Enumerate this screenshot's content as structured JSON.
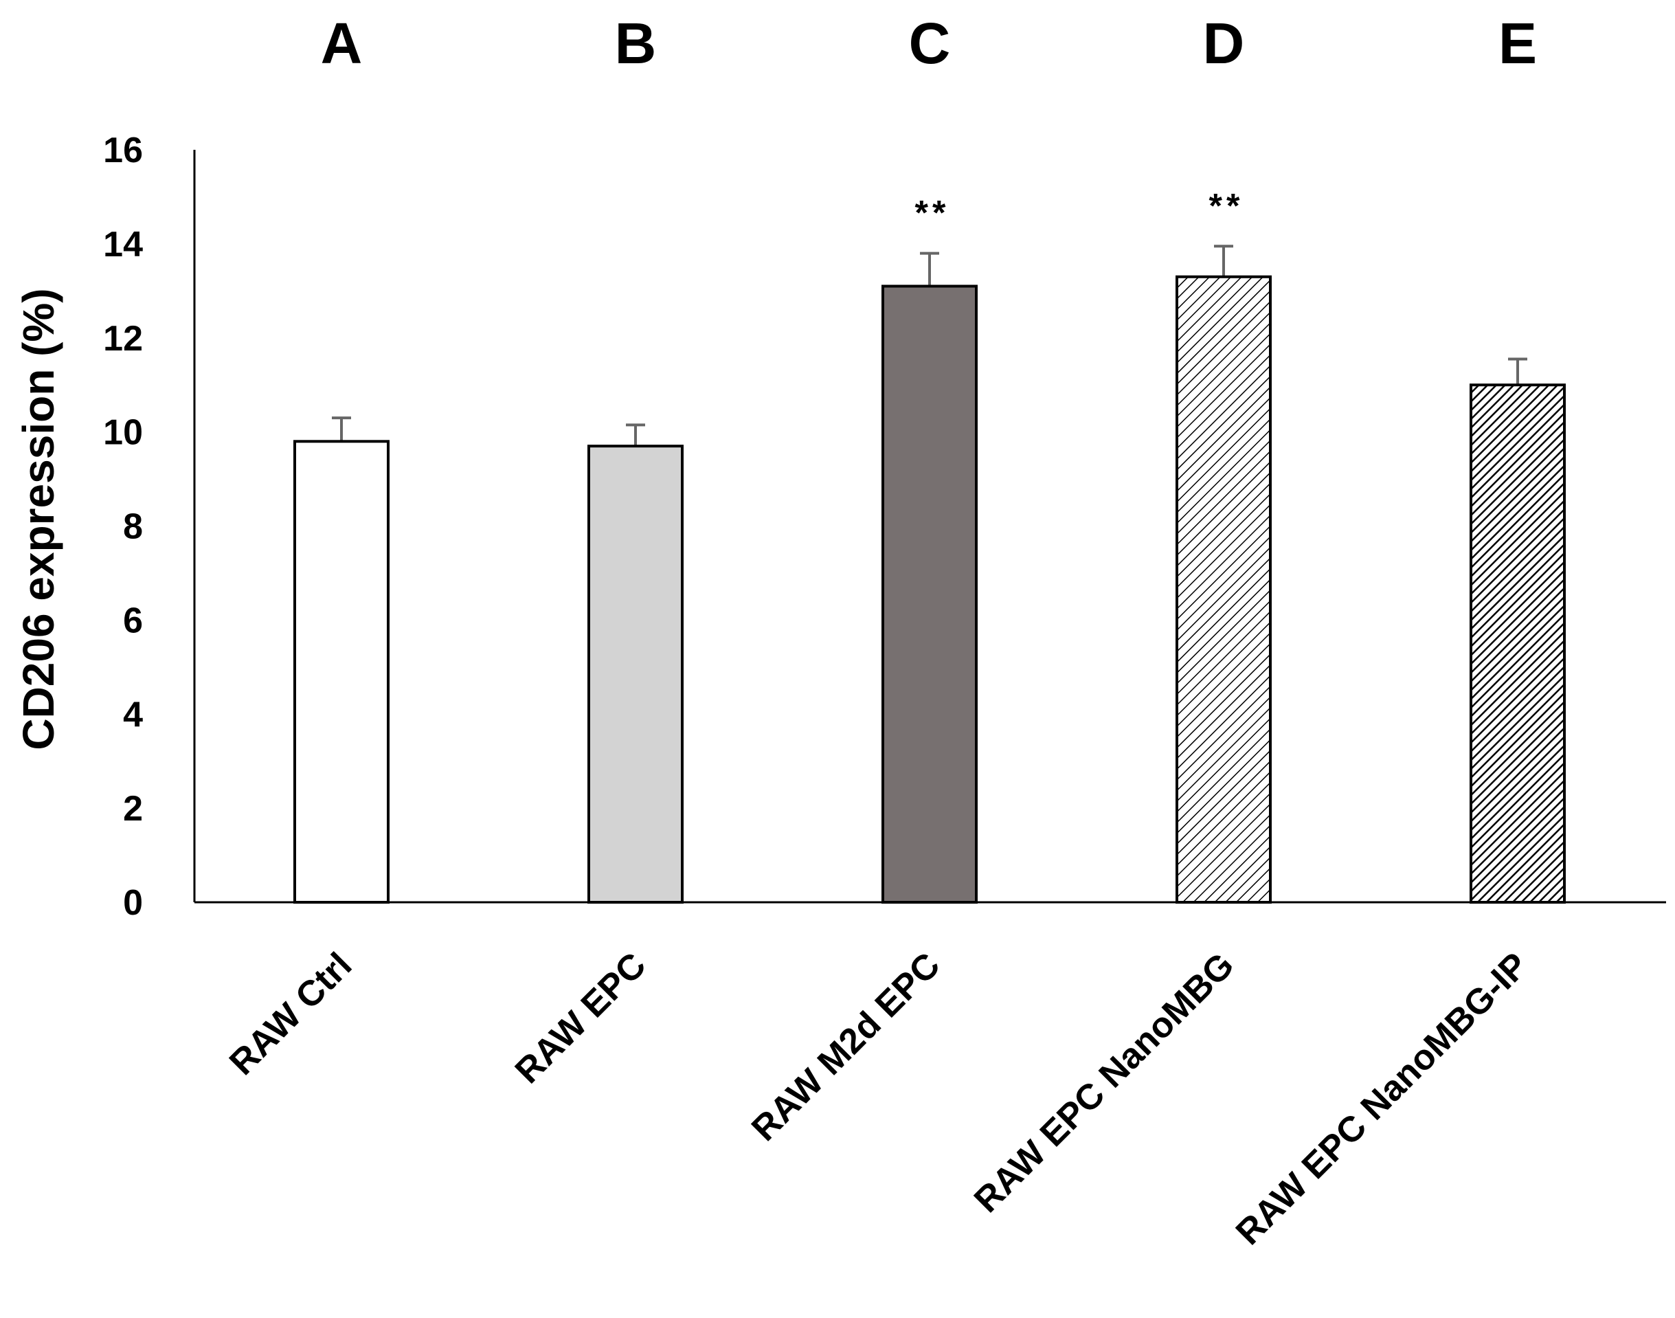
{
  "chart_data": {
    "type": "bar",
    "title": "",
    "xlabel": "",
    "ylabel": "CD206 expression (%)",
    "ylim": [
      0,
      16
    ],
    "yticks": [
      0,
      2,
      4,
      6,
      8,
      10,
      12,
      14,
      16
    ],
    "grid": false,
    "legend": "none",
    "group_letters": [
      "A",
      "B",
      "C",
      "D",
      "E"
    ],
    "categories": [
      "RAW Ctrl",
      "RAW EPC",
      "RAW M2d EPC",
      "RAW EPC NanoMBG",
      "RAW EPC NanoMBG-IP"
    ],
    "values": [
      9.8,
      9.7,
      13.1,
      13.3,
      11.0
    ],
    "error_plus": [
      0.5,
      0.45,
      0.7,
      0.65,
      0.55
    ],
    "annotations": [
      "",
      "",
      "**",
      "**",
      ""
    ],
    "bar_styles": [
      {
        "fill": "#ffffff",
        "pattern": "none"
      },
      {
        "fill": "#d3d3d3",
        "pattern": "none"
      },
      {
        "fill": "#777070",
        "pattern": "none"
      },
      {
        "fill": "#ffffff",
        "pattern": "light-diagonal"
      },
      {
        "fill": "#ffffff",
        "pattern": "dense-diagonal"
      }
    ],
    "colors": {
      "axis": "#000000",
      "bar_border": "#000000",
      "error_bar": "#666666",
      "hatch": "#000000"
    }
  }
}
